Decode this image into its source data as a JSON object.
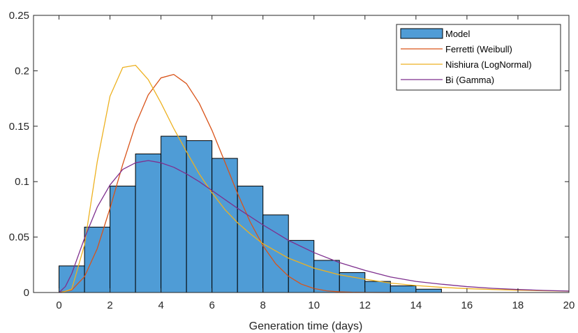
{
  "chart_data": {
    "type": "bar",
    "title": "",
    "xlabel": "Generation time (days)",
    "ylabel": "",
    "xlim": [
      -1,
      20
    ],
    "ylim": [
      0,
      0.25
    ],
    "xticks": [
      0,
      2,
      4,
      6,
      8,
      10,
      12,
      14,
      16,
      18,
      20
    ],
    "yticks": [
      0,
      0.05,
      0.1,
      0.15,
      0.2,
      0.25
    ],
    "xtick_labels": [
      "0",
      "2",
      "4",
      "6",
      "8",
      "10",
      "12",
      "14",
      "16",
      "18",
      "20"
    ],
    "ytick_labels": [
      "0",
      "0.05",
      "0.1",
      "0.15",
      "0.2",
      "0.25"
    ],
    "grid": false,
    "legend_position": "top-right",
    "histogram": {
      "name": "Model",
      "color": "#4f9cd6",
      "bin_edges": [
        0,
        1,
        2,
        3,
        4,
        5,
        6,
        7,
        8,
        9,
        10,
        11,
        12,
        13,
        14,
        15
      ],
      "values": [
        0.024,
        0.059,
        0.096,
        0.125,
        0.141,
        0.137,
        0.121,
        0.096,
        0.07,
        0.047,
        0.029,
        0.018,
        0.01,
        0.006,
        0.003
      ]
    },
    "series": [
      {
        "name": "Ferretti (Weibull)",
        "color": "#d95319",
        "x": [
          0,
          0.5,
          1,
          1.5,
          2,
          2.5,
          3,
          3.5,
          4,
          4.5,
          5,
          5.5,
          6,
          6.5,
          7,
          7.5,
          8,
          8.5,
          9,
          9.5,
          10,
          10.5,
          11,
          11.5,
          12,
          13
        ],
        "y": [
          0,
          0.0022,
          0.0143,
          0.0396,
          0.0759,
          0.1156,
          0.1514,
          0.1783,
          0.1936,
          0.1967,
          0.1884,
          0.1707,
          0.1463,
          0.1181,
          0.0895,
          0.0636,
          0.0422,
          0.0259,
          0.0147,
          0.0076,
          0.0036,
          0.0015,
          0.0006,
          0.0002,
          0.0001,
          0
        ]
      },
      {
        "name": "Nishiura (LogNormal)",
        "color": "#edb120",
        "x": [
          0.1,
          0.5,
          1,
          1.5,
          2,
          2.5,
          3,
          3.5,
          4,
          4.5,
          5,
          5.5,
          6,
          6.5,
          7,
          7.5,
          8,
          9,
          10,
          11,
          12,
          13,
          14,
          15,
          16,
          17,
          18,
          19,
          20
        ],
        "y": [
          0,
          0.003,
          0.043,
          0.118,
          0.177,
          0.203,
          0.205,
          0.192,
          0.171,
          0.148,
          0.127,
          0.107,
          0.09,
          0.075,
          0.063,
          0.053,
          0.044,
          0.031,
          0.022,
          0.016,
          0.012,
          0.0085,
          0.0063,
          0.0047,
          0.0035,
          0.0027,
          0.0021,
          0.0016,
          0.0012
        ]
      },
      {
        "name": "Bi (Gamma)",
        "color": "#7e2f8e",
        "x": [
          0,
          0.25,
          0.5,
          1,
          1.5,
          2,
          2.5,
          3,
          3.5,
          4,
          4.5,
          5,
          5.5,
          6,
          7,
          8,
          9,
          10,
          11,
          12,
          13,
          14,
          15,
          16,
          17,
          18,
          19,
          20
        ],
        "y": [
          0,
          0.0054,
          0.017,
          0.049,
          0.077,
          0.097,
          0.111,
          0.117,
          0.119,
          0.117,
          0.113,
          0.107,
          0.1,
          0.092,
          0.076,
          0.061,
          0.047,
          0.036,
          0.027,
          0.02,
          0.014,
          0.01,
          0.0075,
          0.0053,
          0.0038,
          0.0027,
          0.0019,
          0.0013
        ]
      }
    ]
  }
}
